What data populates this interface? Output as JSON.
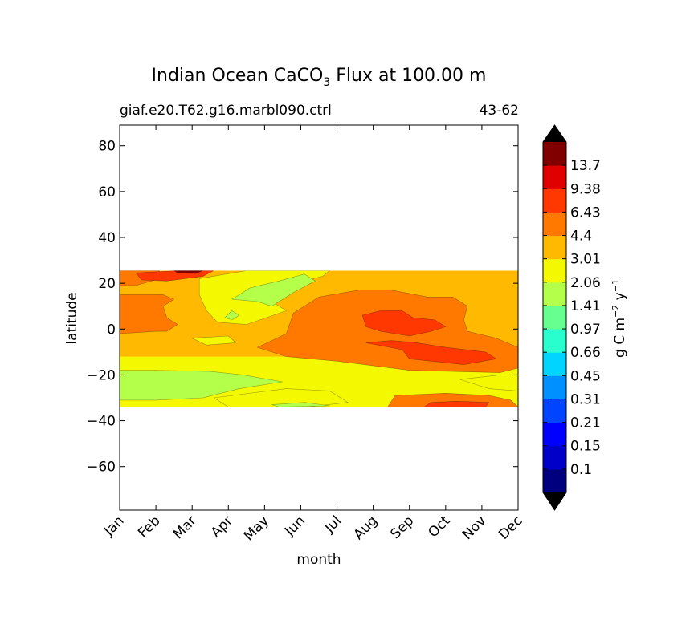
{
  "chart_data": {
    "type": "heatmap",
    "title_main": "Indian Ocean CaCO",
    "title_sub": "3",
    "title_rest": " Flux at 100.00 m",
    "subtitle_left": "giaf.e20.T62.g16.marbl090.ctrl",
    "subtitle_right": "43-62",
    "xlabel": "month",
    "ylabel": "latitude",
    "x_ticklabels": [
      "Jan",
      "Feb",
      "Mar",
      "Apr",
      "May",
      "Jun",
      "Jul",
      "Aug",
      "Sep",
      "Oct",
      "Nov",
      "Dec"
    ],
    "y_ticks": [
      80,
      60,
      40,
      20,
      0,
      -20,
      -40,
      -60
    ],
    "y_ticklabels": [
      "80",
      "60",
      "40",
      "20",
      "0",
      "−20",
      "−40",
      "−60"
    ],
    "xlim": [
      0,
      11
    ],
    "ylim": [
      -79,
      89
    ],
    "data_lat_range": [
      -34,
      25.5
    ],
    "colorbar": {
      "label_base": "g C m",
      "label_exp1": "−2",
      "label_mid": " y",
      "label_exp2": "−1",
      "levels": [
        "0.1",
        "0.15",
        "0.21",
        "0.31",
        "0.45",
        "0.66",
        "0.97",
        "1.41",
        "2.06",
        "3.01",
        "4.4",
        "6.43",
        "9.38",
        "13.7"
      ],
      "colors": [
        "#00007f",
        "#0000c8",
        "#0000ff",
        "#0044ff",
        "#0090ff",
        "#00d4ff",
        "#29ffce",
        "#66ff90",
        "#b4ff49",
        "#f4f801",
        "#ffb900",
        "#ff7800",
        "#ff3700",
        "#e00000",
        "#800000"
      ],
      "under_color": "#000000",
      "over_color": "#000000"
    },
    "regions": [
      {
        "name": "band-north-orange",
        "level": 11,
        "pts": [
          [
            0,
            25.5
          ],
          [
            1.1,
            25.5
          ],
          [
            1.1,
            22
          ],
          [
            0.45,
            19
          ],
          [
            0,
            19
          ]
        ]
      },
      {
        "name": "band-north-red",
        "level": 12,
        "pts": [
          [
            0.45,
            24.5
          ],
          [
            1.6,
            25.5
          ],
          [
            2.6,
            25.5
          ],
          [
            2.3,
            23
          ],
          [
            1.3,
            21
          ],
          [
            0.6,
            21.5
          ]
        ]
      },
      {
        "name": "patch-feb-darkred",
        "level": 14,
        "pts": [
          [
            1.5,
            25.5
          ],
          [
            2.3,
            25.5
          ],
          [
            2.1,
            24.2
          ],
          [
            1.6,
            24.5
          ]
        ]
      },
      {
        "name": "patch-west-orange",
        "level": 11,
        "pts": [
          [
            0,
            15
          ],
          [
            1.2,
            15
          ],
          [
            1.5,
            13
          ],
          [
            1.2,
            10
          ],
          [
            1.3,
            5
          ],
          [
            1.6,
            2
          ],
          [
            1.3,
            -1
          ],
          [
            1,
            -1
          ],
          [
            0.5,
            -1.5
          ],
          [
            0,
            -2
          ]
        ]
      },
      {
        "name": "band-midwest-yellow",
        "level": 9,
        "pts": [
          [
            2.2,
            22
          ],
          [
            3.5,
            25.5
          ],
          [
            5.8,
            25.5
          ],
          [
            5.6,
            23
          ],
          [
            4.8,
            20
          ],
          [
            4.3,
            17
          ],
          [
            4.2,
            12
          ],
          [
            4.6,
            8
          ],
          [
            3.5,
            2
          ],
          [
            2.7,
            3
          ],
          [
            2.4,
            8
          ],
          [
            2.2,
            15
          ]
        ]
      },
      {
        "name": "patch-may-green",
        "level": 8,
        "pts": [
          [
            3.1,
            13
          ],
          [
            3.6,
            18
          ],
          [
            4.4,
            21
          ],
          [
            5.1,
            24
          ],
          [
            5.4,
            21
          ],
          [
            4.8,
            16
          ],
          [
            4.2,
            10
          ],
          [
            3.8,
            12
          ]
        ]
      },
      {
        "name": "patch-apr-green",
        "level": 8,
        "pts": [
          [
            2.9,
            5
          ],
          [
            3.1,
            8
          ],
          [
            3.3,
            6
          ],
          [
            3.1,
            4
          ]
        ]
      },
      {
        "name": "patch-apr-yellow",
        "level": 9,
        "pts": [
          [
            2.0,
            -4
          ],
          [
            3.0,
            -3
          ],
          [
            3.2,
            -6
          ],
          [
            2.4,
            -7
          ]
        ]
      },
      {
        "name": "patch-east-orange",
        "level": 11,
        "pts": [
          [
            3.8,
            -8
          ],
          [
            4.6,
            -12
          ],
          [
            6,
            -14
          ],
          [
            8,
            -18
          ],
          [
            10.5,
            -19
          ],
          [
            11,
            -17
          ],
          [
            11,
            -8
          ],
          [
            10.4,
            -4
          ],
          [
            9.6,
            -1
          ],
          [
            9.5,
            4
          ],
          [
            9.6,
            10
          ],
          [
            9.2,
            14
          ],
          [
            8.5,
            14
          ],
          [
            7.5,
            17
          ],
          [
            6.6,
            17
          ],
          [
            5.5,
            14
          ],
          [
            4.8,
            7
          ],
          [
            4.6,
            -2
          ],
          [
            4.2,
            -5
          ]
        ]
      },
      {
        "name": "patch-sep-red",
        "level": 12,
        "pts": [
          [
            6.8,
            -6
          ],
          [
            7.8,
            -9
          ],
          [
            8,
            -13
          ],
          [
            9.5,
            -15.5
          ],
          [
            10.4,
            -13
          ],
          [
            10.1,
            -10
          ],
          [
            9,
            -8
          ],
          [
            8.2,
            -6
          ],
          [
            7.5,
            -5
          ]
        ]
      },
      {
        "name": "patch-aug-red",
        "level": 12,
        "pts": [
          [
            6.7,
            6
          ],
          [
            7.2,
            8
          ],
          [
            7.8,
            8
          ],
          [
            8.1,
            5
          ],
          [
            8.7,
            4
          ],
          [
            9,
            1
          ],
          [
            8.6,
            -1
          ],
          [
            8,
            -3
          ],
          [
            7.2,
            -1
          ],
          [
            6.8,
            1
          ]
        ]
      },
      {
        "name": "patch-south-green",
        "level": 8,
        "pts": [
          [
            0,
            -18
          ],
          [
            1,
            -18
          ],
          [
            2.5,
            -18.5
          ],
          [
            3.4,
            -20
          ],
          [
            4.5,
            -23
          ],
          [
            3.3,
            -26
          ],
          [
            2.3,
            -30
          ],
          [
            1,
            -31
          ],
          [
            0,
            -31
          ]
        ]
      },
      {
        "name": "patch-south-yellow",
        "level": 9,
        "pts": [
          [
            2.6,
            -30
          ],
          [
            4.6,
            -26
          ],
          [
            5.8,
            -27
          ],
          [
            6.3,
            -32
          ],
          [
            5.2,
            -34
          ],
          [
            3,
            -34
          ]
        ]
      },
      {
        "name": "patch-sw-green",
        "level": 8,
        "pts": [
          [
            4.2,
            -33
          ],
          [
            5.1,
            -32
          ],
          [
            5.8,
            -33.5
          ],
          [
            4.4,
            -34
          ]
        ]
      },
      {
        "name": "patch-se-orange",
        "level": 11,
        "pts": [
          [
            7.4,
            -34
          ],
          [
            7.6,
            -29
          ],
          [
            9,
            -28
          ],
          [
            10.2,
            -29
          ],
          [
            10.8,
            -31
          ],
          [
            11,
            -34
          ]
        ]
      },
      {
        "name": "patch-se-red",
        "level": 12,
        "pts": [
          [
            8.4,
            -34
          ],
          [
            8.6,
            -32
          ],
          [
            9.3,
            -31.5
          ],
          [
            10.2,
            -32
          ],
          [
            10.1,
            -34
          ]
        ]
      },
      {
        "name": "patch-east-yellow",
        "level": 9,
        "pts": [
          [
            9.4,
            -22
          ],
          [
            10.5,
            -20
          ],
          [
            11,
            -20
          ],
          [
            11,
            -27
          ],
          [
            10.2,
            -26
          ]
        ]
      }
    ]
  }
}
